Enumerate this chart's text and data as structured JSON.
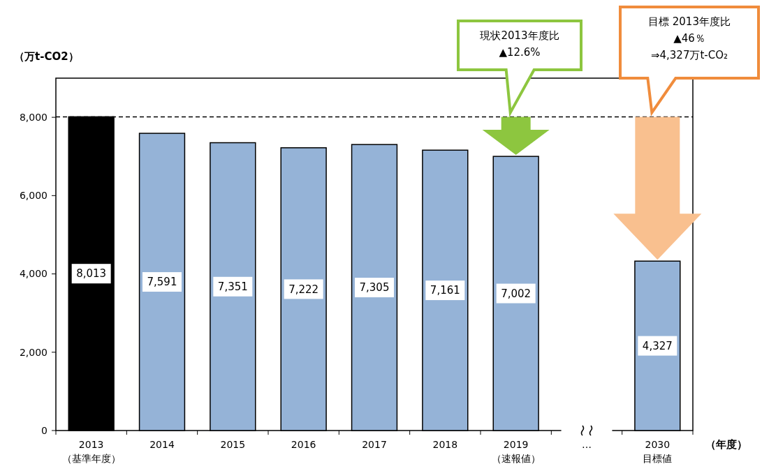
{
  "chart_data": {
    "type": "bar",
    "ylabel": "（万t-CO2）",
    "xlabel": "（年度）",
    "categories": [
      "2013\n（基準年度）",
      "2014",
      "2015",
      "2016",
      "2017",
      "2018",
      "2019\n（速報値）",
      "…",
      "2030\n目標値"
    ],
    "values": [
      8013,
      7591,
      7351,
      7222,
      7305,
      7161,
      7002,
      null,
      4327
    ],
    "colors": [
      "#000000",
      "#95b3d7",
      "#95b3d7",
      "#95b3d7",
      "#95b3d7",
      "#95b3d7",
      "#95b3d7",
      null,
      "#95b3d7"
    ],
    "value_labels": [
      "8,013",
      "7,591",
      "7,351",
      "7,222",
      "7,305",
      "7,161",
      "7,002",
      null,
      "4,327"
    ],
    "ylim": [
      0,
      9000
    ],
    "yticks": [
      {
        "value": 0,
        "label": "0"
      },
      {
        "value": 2000,
        "label": "2,000"
      },
      {
        "value": 4000,
        "label": "4,000"
      },
      {
        "value": 6000,
        "label": "6,000"
      },
      {
        "value": 8000,
        "label": "8,000"
      }
    ],
    "grid": false,
    "ref_lines": [
      {
        "axis": "y",
        "value": 8013,
        "line_style": "dashed",
        "color": "#000000"
      }
    ],
    "annotations": [
      "現状2013年度比\n▲12.6%",
      "目標 2013年度比\n▲46％\n⇒4,327万t-CO₂"
    ]
  }
}
